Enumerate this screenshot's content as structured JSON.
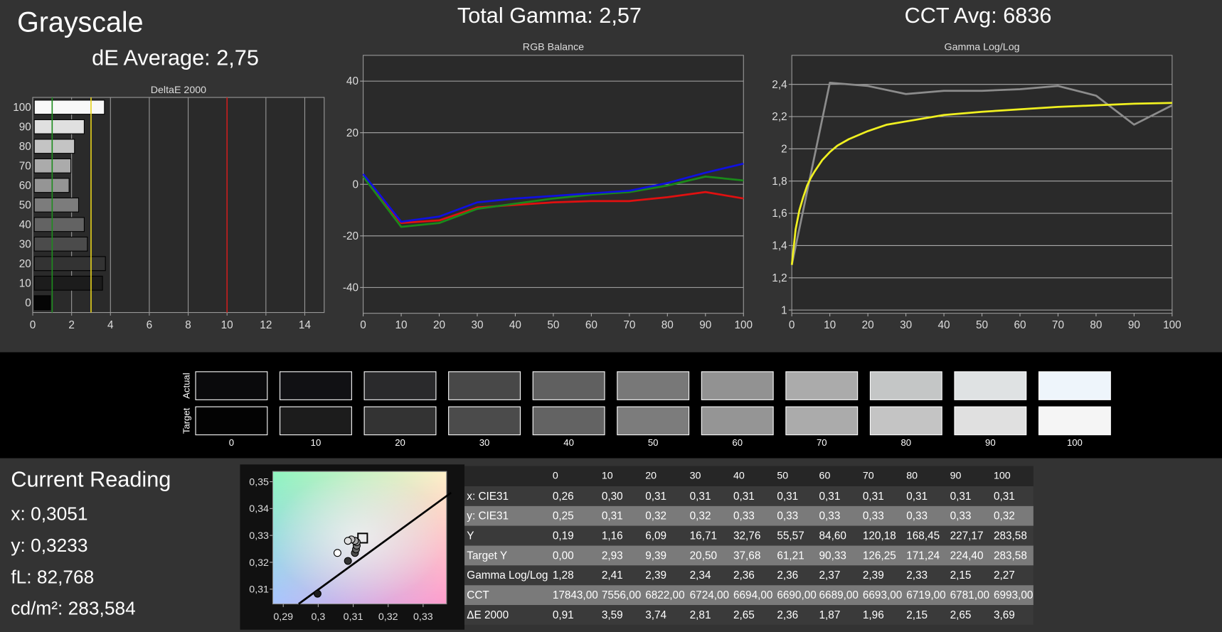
{
  "title": "Grayscale",
  "de_average": "dE Average: 2,75",
  "total_gamma": "Total Gamma: 2,57",
  "cct_avg": "CCT Avg: 6836",
  "chart_data": [
    {
      "type": "barh",
      "title": "DeltaE 2000",
      "categories": [
        "0",
        "10",
        "20",
        "30",
        "40",
        "50",
        "60",
        "70",
        "80",
        "90",
        "100"
      ],
      "values": [
        0.91,
        3.59,
        3.74,
        2.81,
        2.65,
        2.36,
        1.87,
        1.96,
        2.15,
        2.65,
        3.69
      ],
      "colors": [
        "#050505",
        "#1c1c1c",
        "#333333",
        "#4b4b4b",
        "#636363",
        "#7c7c7c",
        "#959595",
        "#ababab",
        "#c4c4c4",
        "#e0e0e0",
        "#f8f8f8"
      ],
      "xlim": [
        0,
        15
      ],
      "xticks": [
        0,
        2,
        4,
        6,
        8,
        10,
        12,
        14
      ],
      "reference_lines": [
        {
          "value": 1,
          "color": "#1e8c1e"
        },
        {
          "value": 3,
          "color": "#e6d21e"
        },
        {
          "value": 10,
          "color": "#c81e1e"
        }
      ]
    },
    {
      "type": "line",
      "title": "RGB Balance",
      "x": [
        0,
        10,
        20,
        30,
        40,
        50,
        60,
        70,
        80,
        90,
        100
      ],
      "xlim": [
        0,
        100
      ],
      "xticks": [
        0,
        10,
        20,
        30,
        40,
        50,
        60,
        70,
        80,
        90,
        100
      ],
      "ylim": [
        -50,
        50
      ],
      "yticks": [
        -40,
        -20,
        0,
        20,
        40
      ],
      "grid": true,
      "series": [
        {
          "color": "#e01010",
          "values": [
            3,
            -15,
            -14,
            -9,
            -8,
            -7,
            -6.5,
            -6.5,
            -5,
            -3,
            -5.5
          ]
        },
        {
          "color": "#1a8a1a",
          "values": [
            3,
            -16.5,
            -15,
            -9.5,
            -7.5,
            -5.5,
            -4,
            -3,
            -0.5,
            3,
            1.5
          ]
        },
        {
          "color": "#1010e0",
          "values": [
            4,
            -14.5,
            -12.5,
            -7,
            -5.5,
            -4.5,
            -3.5,
            -2.5,
            0.5,
            4.5,
            8
          ]
        }
      ]
    },
    {
      "type": "line",
      "title": "Gamma Log/Log",
      "xlim": [
        0,
        100
      ],
      "xticks": [
        0,
        10,
        20,
        30,
        40,
        50,
        60,
        70,
        80,
        90,
        100
      ],
      "ylim": [
        0.98,
        2.58
      ],
      "yticks": [
        1,
        {
          "value": 1.2,
          "label": "1,2"
        },
        {
          "value": 1.4,
          "label": "1,4"
        },
        {
          "value": 1.6,
          "label": "1,6"
        },
        {
          "value": 1.8,
          "label": "1,8"
        },
        2,
        {
          "value": 2.2,
          "label": "2,2"
        },
        {
          "value": 2.4,
          "label": "2,4"
        }
      ],
      "grid": true,
      "series": [
        {
          "color": "#8c8c8c",
          "x": [
            0,
            10,
            20,
            30,
            40,
            50,
            60,
            70,
            80,
            90,
            100
          ],
          "values": [
            1.28,
            2.41,
            2.39,
            2.34,
            2.36,
            2.36,
            2.37,
            2.39,
            2.33,
            2.15,
            2.27
          ]
        },
        {
          "color": "#f0f020",
          "x": [
            0,
            1,
            2,
            3,
            4,
            5,
            6,
            8,
            10,
            12,
            15,
            20,
            25,
            30,
            40,
            50,
            60,
            70,
            80,
            90,
            100
          ],
          "values": [
            1.28,
            1.5,
            1.62,
            1.7,
            1.77,
            1.82,
            1.86,
            1.93,
            1.98,
            2.02,
            2.06,
            2.11,
            2.15,
            2.17,
            2.21,
            2.23,
            2.245,
            2.26,
            2.27,
            2.28,
            2.285
          ]
        }
      ]
    },
    {
      "type": "scatter",
      "xlim": [
        0.287,
        0.3367
      ],
      "ylim": [
        0.3045,
        0.3538
      ],
      "xticks": [
        {
          "value": 0.29,
          "label": "0,29"
        },
        {
          "value": 0.3,
          "label": "0,3"
        },
        {
          "value": 0.31,
          "label": "0,31"
        },
        {
          "value": 0.32,
          "label": "0,32"
        },
        {
          "value": 0.33,
          "label": "0,33"
        }
      ],
      "yticks": [
        {
          "value": 0.31,
          "label": "0,31"
        },
        {
          "value": 0.32,
          "label": "0,32"
        },
        {
          "value": 0.33,
          "label": "0,33"
        },
        {
          "value": 0.34,
          "label": "0,34"
        },
        {
          "value": 0.35,
          "label": "0,35"
        }
      ],
      "series": [
        {
          "x": [
            0.2998,
            0.3085,
            0.3105,
            0.3108,
            0.311,
            0.311,
            0.3105,
            0.3095,
            0.3085,
            0.3055
          ],
          "values": [
            0.3083,
            0.3205,
            0.3235,
            0.3248,
            0.3262,
            0.3275,
            0.328,
            0.3285,
            0.328,
            0.3235
          ],
          "colors": [
            "#1c1c1c",
            "#333333",
            "#4b4b4b",
            "#636363",
            "#7c7c7c",
            "#959595",
            "#ababab",
            "#c4c4c4",
            "#e0e0e0",
            "#ffffff"
          ]
        }
      ],
      "target": {
        "x": 0.3127,
        "y": 0.329
      },
      "locus": {
        "x": [
          0.2944,
          0.338
        ],
        "y": [
          0.3045,
          0.3459
        ]
      }
    }
  ],
  "swatches": {
    "row_labels": [
      "Actual",
      "Target"
    ],
    "labels": [
      "0",
      "10",
      "20",
      "30",
      "40",
      "50",
      "60",
      "70",
      "80",
      "90",
      "100"
    ],
    "actual_colors": [
      "#0a0a0c",
      "#111114",
      "#2a2a2c",
      "#484848",
      "#606060",
      "#787878",
      "#929292",
      "#ababab",
      "#c4c6c6",
      "#dfe2e3",
      "#eef5fb"
    ],
    "target_colors": [
      "#030303",
      "#1c1c1c",
      "#333333",
      "#4b4b4b",
      "#636363",
      "#7c7c7c",
      "#959595",
      "#ababab",
      "#c4c4c4",
      "#e0e0e0",
      "#f5f5f5"
    ]
  },
  "current_reading": {
    "title": "Current Reading",
    "lines": [
      "x: 0,3051",
      "y: 0,3233",
      "fL: 82,768",
      "cd/m²: 283,584"
    ]
  },
  "table": {
    "header": [
      "0",
      "10",
      "20",
      "30",
      "40",
      "50",
      "60",
      "70",
      "80",
      "90",
      "100"
    ],
    "rows": [
      [
        "x: CIE31",
        "0,26",
        "0,30",
        "0,31",
        "0,31",
        "0,31",
        "0,31",
        "0,31",
        "0,31",
        "0,31",
        "0,31",
        "0,31"
      ],
      [
        "y: CIE31",
        "0,25",
        "0,31",
        "0,32",
        "0,32",
        "0,33",
        "0,33",
        "0,33",
        "0,33",
        "0,33",
        "0,33",
        "0,32"
      ],
      [
        "Y",
        "0,19",
        "1,16",
        "6,09",
        "16,71",
        "32,76",
        "55,57",
        "84,60",
        "120,18",
        "168,45",
        "227,17",
        "283,58"
      ],
      [
        "Target Y",
        "0,00",
        "2,93",
        "9,39",
        "20,50",
        "37,68",
        "61,21",
        "90,33",
        "126,25",
        "171,24",
        "224,40",
        "283,58"
      ],
      [
        "Gamma Log/Log",
        "1,28",
        "2,41",
        "2,39",
        "2,34",
        "2,36",
        "2,36",
        "2,37",
        "2,39",
        "2,33",
        "2,15",
        "2,27"
      ],
      [
        "CCT",
        "17843,00",
        "7556,00",
        "6822,00",
        "6724,00",
        "6694,00",
        "6690,00",
        "6689,00",
        "6693,00",
        "6719,00",
        "6781,00",
        "6993,00"
      ],
      [
        "ΔE 2000",
        "0,91",
        "3,59",
        "3,74",
        "2,81",
        "2,65",
        "2,36",
        "1,87",
        "1,96",
        "2,15",
        "2,65",
        "3,69"
      ]
    ]
  }
}
